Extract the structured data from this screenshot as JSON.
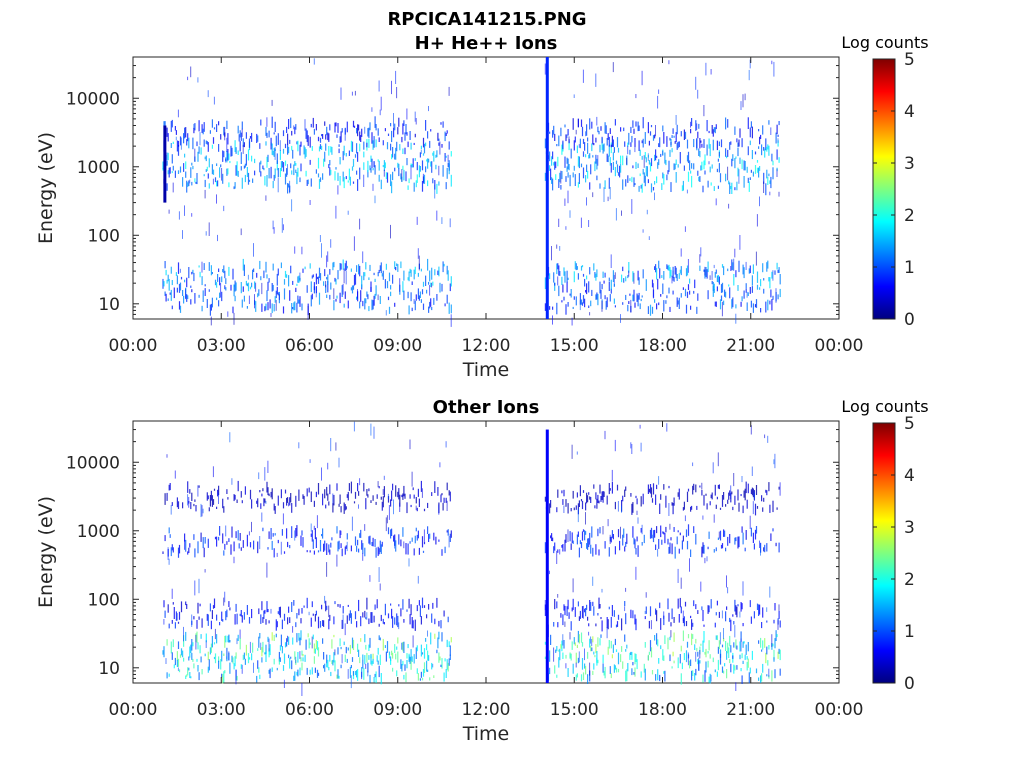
{
  "figure_title": "RPCICA141215.PNG",
  "colormap": "jet",
  "colors": {
    "axis": "#262626",
    "background": "#ffffff",
    "jet": [
      "#00007f",
      "#0000ff",
      "#007fff",
      "#00ffff",
      "#7fff7f",
      "#ffff00",
      "#ff7f00",
      "#ff0000",
      "#7f0000"
    ]
  },
  "chart_data": [
    {
      "type": "heatmap",
      "title": "H+ He++ Ions",
      "xlabel": "Time",
      "ylabel": "Energy (eV)",
      "y_scale": "log",
      "x_range": [
        "00:00",
        "24:00"
      ],
      "ylim": [
        6,
        40000
      ],
      "x_ticks": [
        "00:00",
        "03:00",
        "06:00",
        "09:00",
        "12:00",
        "15:00",
        "18:00",
        "21:00",
        "00:00"
      ],
      "y_ticks": [
        "10",
        "100",
        "1000",
        "10000"
      ],
      "colorbar": {
        "label": "Log counts",
        "range": [
          0,
          5
        ],
        "ticks": [
          "0",
          "1",
          "2",
          "3",
          "4",
          "5"
        ]
      },
      "data_coverage": [
        [
          "01:00",
          "10:50"
        ],
        [
          "14:00",
          "22:00"
        ]
      ],
      "features": [
        {
          "time": "14:05",
          "energy_range": [
            6,
            40000
          ],
          "log_counts": 0.8,
          "note": "vertical spike"
        },
        {
          "time": "01:05",
          "energy_range": [
            300,
            4000
          ],
          "log_counts": 0.2
        }
      ],
      "bands": [
        {
          "energy_eV": 700,
          "log_counts_max": 2.0
        },
        {
          "energy_eV": 1500,
          "log_counts_max": 2.0
        },
        {
          "energy_eV": 3000,
          "log_counts_max": 1.2
        },
        {
          "energy_eV": 12,
          "log_counts_max": 1.5
        },
        {
          "energy_eV": 25,
          "log_counts_max": 1.8
        }
      ]
    },
    {
      "type": "heatmap",
      "title": "Other Ions",
      "xlabel": "Time",
      "ylabel": "Energy (eV)",
      "y_scale": "log",
      "x_range": [
        "00:00",
        "24:00"
      ],
      "ylim": [
        6,
        40000
      ],
      "x_ticks": [
        "00:00",
        "03:00",
        "06:00",
        "09:00",
        "12:00",
        "15:00",
        "18:00",
        "21:00",
        "00:00"
      ],
      "y_ticks": [
        "10",
        "100",
        "1000",
        "10000"
      ],
      "colorbar": {
        "label": "Log counts",
        "range": [
          0,
          5
        ],
        "ticks": [
          "0",
          "1",
          "2",
          "3",
          "4",
          "5"
        ]
      },
      "data_coverage": [
        [
          "01:00",
          "10:50"
        ],
        [
          "14:00",
          "22:00"
        ]
      ],
      "features": [
        {
          "time": "14:05",
          "energy_range": [
            6,
            30000
          ],
          "log_counts": 0.6,
          "note": "vertical spike"
        }
      ],
      "bands": [
        {
          "energy_eV": 700,
          "log_counts_max": 1.2
        },
        {
          "energy_eV": 3000,
          "log_counts_max": 0.5
        },
        {
          "energy_eV": 20,
          "log_counts_max": 2.8
        },
        {
          "energy_eV": 10,
          "log_counts_max": 2.5
        },
        {
          "energy_eV": 60,
          "log_counts_max": 1.0
        }
      ]
    }
  ]
}
